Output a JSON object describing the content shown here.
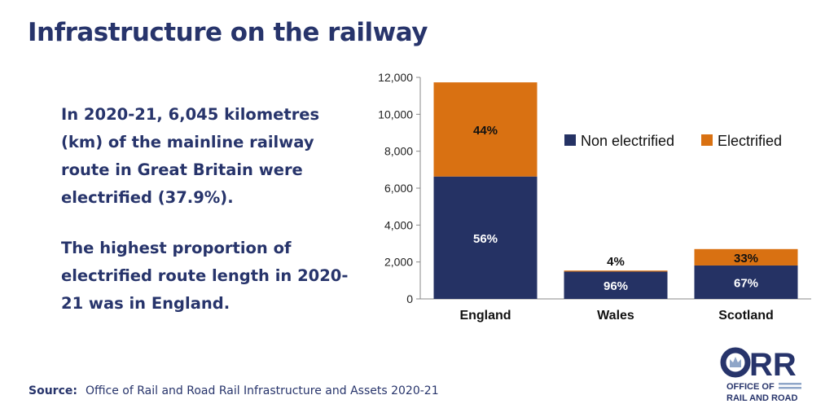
{
  "title": "Infrastructure on the railway",
  "paragraphs": [
    "In 2020-21, 6,045 kilometres (km) of the mainline railway route in Great Britain were electrified (37.9%).",
    "The highest proportion of electrified route length in 2020-21 was in England."
  ],
  "source": {
    "label": "Source:",
    "text": "Office of Rail and Road Rail Infrastructure and Assets 2020-21"
  },
  "logo": {
    "text": "ORR",
    "line1": "OFFICE OF",
    "line2": "RAIL AND ROAD"
  },
  "chart_data": {
    "type": "bar",
    "stacked": true,
    "categories": [
      "England",
      "Wales",
      "Scotland"
    ],
    "series": [
      {
        "name": "Non electrified",
        "color": "#253264",
        "values": [
          6630,
          1480,
          1810
        ],
        "labels": [
          "56%",
          "96%",
          "67%"
        ]
      },
      {
        "name": "Electrified",
        "color": "#d97112",
        "values": [
          5100,
          55,
          890
        ],
        "labels": [
          "44%",
          "4%",
          "33%"
        ]
      }
    ],
    "yticks": [
      "0",
      "2,000",
      "4,000",
      "6,000",
      "8,000",
      "10,000",
      "12,000"
    ],
    "ylim": [
      0,
      12000
    ],
    "grid": false,
    "legend": "top-right"
  }
}
